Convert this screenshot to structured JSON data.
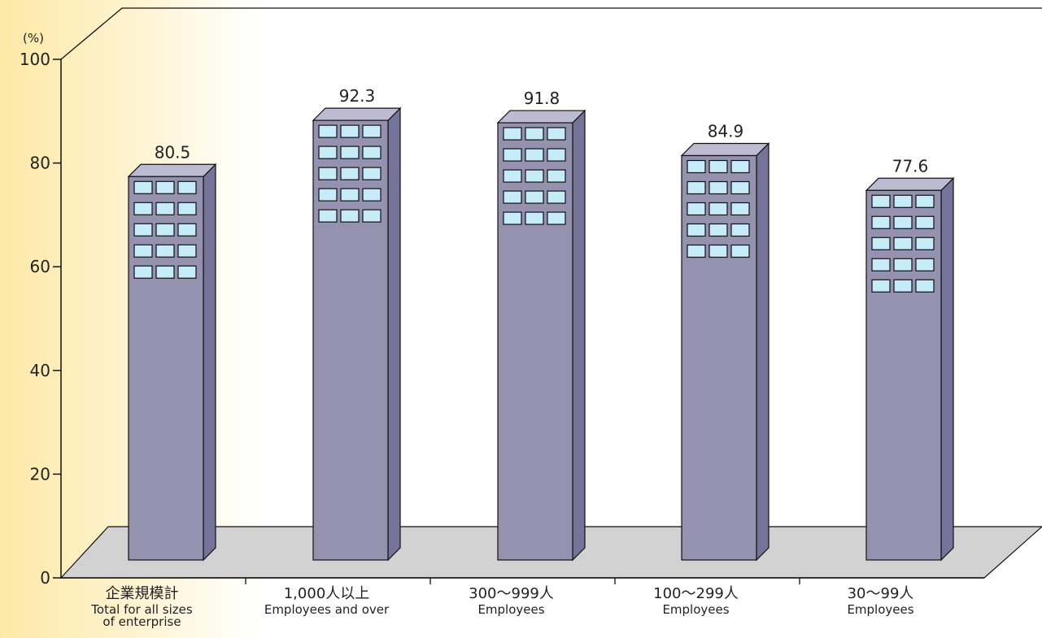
{
  "chart_data": {
    "type": "bar",
    "unit": "(%)",
    "ylim": [
      0,
      100
    ],
    "yticks": [
      "0",
      "20",
      "40",
      "60",
      "80",
      "100"
    ],
    "categories": [
      {
        "jp": "企業規模計",
        "en": [
          "Total for all sizes",
          "of enterprise"
        ]
      },
      {
        "jp": "1,000人以上",
        "en": [
          "Employees and over"
        ]
      },
      {
        "jp": "300～999人",
        "en": [
          "Employees"
        ]
      },
      {
        "jp": "100～299人",
        "en": [
          "Employees"
        ]
      },
      {
        "jp": "30～99人",
        "en": [
          "Employees"
        ]
      }
    ],
    "values": [
      80.5,
      92.3,
      91.8,
      84.9,
      77.6
    ],
    "value_labels": [
      "80.5",
      "92.3",
      "91.8",
      "84.9",
      "77.6"
    ],
    "style": "3d-building-bars",
    "colors": {
      "bar_front": "#9592b0",
      "bar_side": "#76739a",
      "bar_top": "#bdbbd1",
      "window": "#c6ecf9",
      "floor": "#d2d2d2",
      "outline": "#111111"
    }
  }
}
